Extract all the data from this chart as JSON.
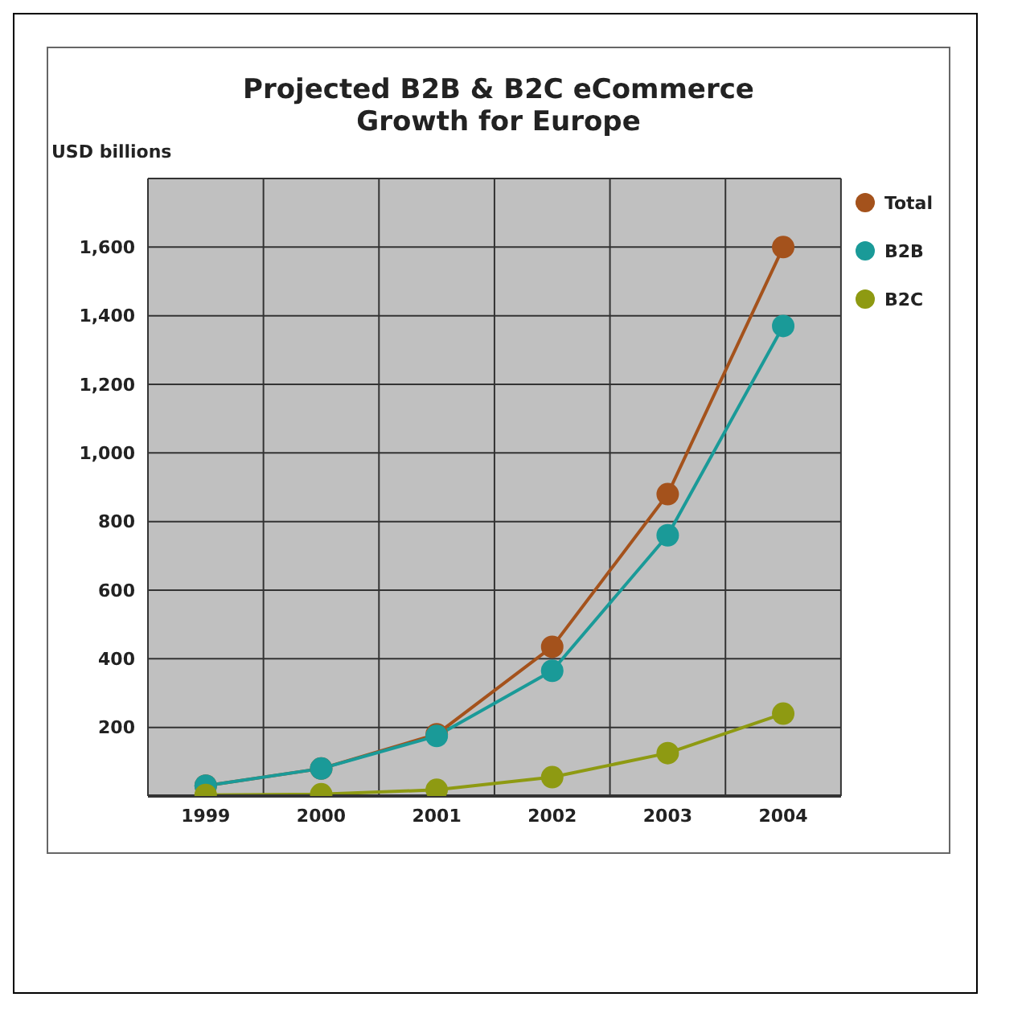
{
  "chart_data": {
    "type": "line",
    "title": "Projected B2B & B2C eCommerce\nGrowth for Europe",
    "ylabel": "USD billions",
    "categories": [
      "1999",
      "2000",
      "2001",
      "2002",
      "2003",
      "2004"
    ],
    "series": [
      {
        "name": "Total",
        "color": "#a4521c",
        "values": [
          30,
          80,
          180,
          435,
          880,
          1600
        ]
      },
      {
        "name": "B2B",
        "color": "#1a9a98",
        "values": [
          30,
          80,
          175,
          365,
          760,
          1370
        ]
      },
      {
        "name": "B2C",
        "color": "#8e9a12",
        "values": [
          3,
          5,
          18,
          55,
          125,
          240
        ]
      }
    ],
    "ylim": [
      0,
      1800
    ],
    "yticks": [
      {
        "value": 0,
        "label": null
      },
      200,
      400,
      600,
      800,
      {
        "value": 1000,
        "label": "1,000"
      },
      {
        "value": 1200,
        "label": "1,200"
      },
      {
        "value": 1400,
        "label": "1,400"
      },
      {
        "value": 1600,
        "label": "1,600"
      },
      {
        "value": 1800,
        "label": null
      }
    ],
    "grid": true,
    "legend": "top right",
    "marker": "circle",
    "line_style": "solid"
  }
}
